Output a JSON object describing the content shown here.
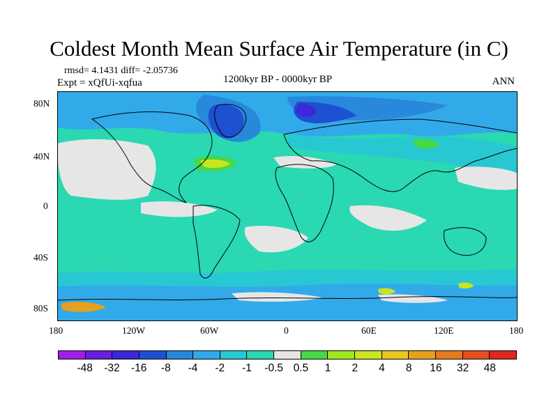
{
  "title": "Coldest Month Mean Surface Air Temperature (in C)",
  "stats_text": "rmsd= 4.1431 diff= -2.05736",
  "expt_text": "Expt = xQfUi-xqfua",
  "period_text": "1200kyr BP - 0000kyr BP",
  "season_text": "ANN",
  "lat_ticks": [
    "80N",
    "40N",
    "0",
    "40S",
    "80S"
  ],
  "lon_ticks": [
    "180",
    "120W",
    "60W",
    "0",
    "60E",
    "120E",
    "180"
  ],
  "colorbar": {
    "labels": [
      "-48",
      "-32",
      "-16",
      "-8",
      "-4",
      "-2",
      "-1",
      "-0.5",
      "0.5",
      "1",
      "2",
      "4",
      "8",
      "16",
      "32",
      "48"
    ],
    "colors": [
      "#a01ee6",
      "#6a1ee0",
      "#3c28d8",
      "#1e50d2",
      "#2888dc",
      "#32aaea",
      "#28c8d2",
      "#2ad8b2",
      "#e6e6e6",
      "#46d846",
      "#a0e61e",
      "#c8e61e",
      "#e6c81e",
      "#e6a01e",
      "#e67a1e",
      "#e6501e",
      "#dc281e"
    ]
  },
  "map_colors": {
    "ocean_base": "#2ad8b2",
    "light_teal": "#28c8d2",
    "blue": "#32aaea",
    "mid_blue": "#2888dc",
    "deep_blue": "#1e50d2",
    "indigo": "#3c28d8",
    "white_zone": "#e6e6e6",
    "green": "#46d846",
    "yellow": "#c8e61e",
    "orange": "#e6a01e"
  }
}
